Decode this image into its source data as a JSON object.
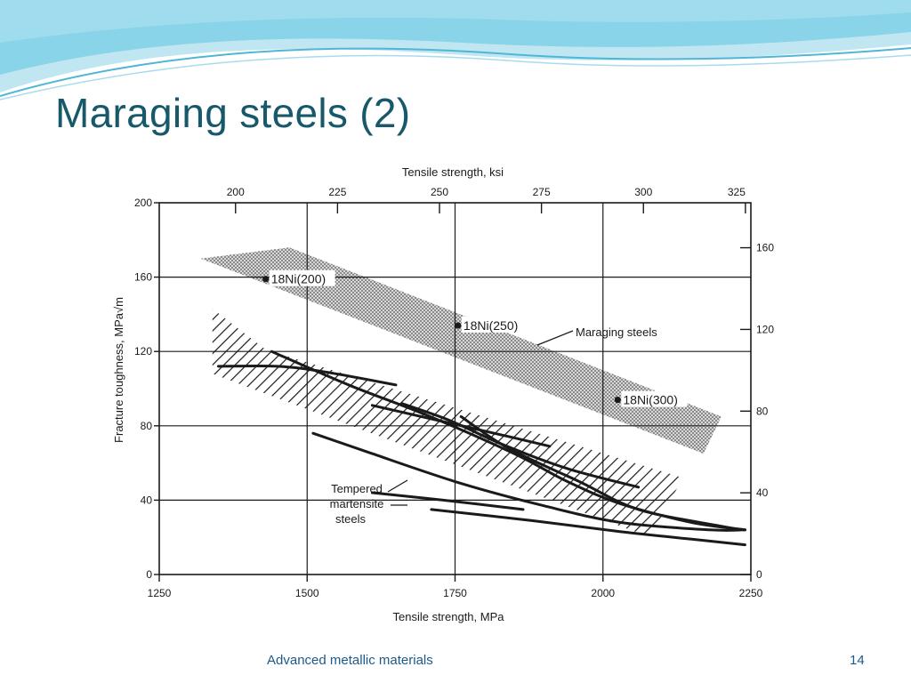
{
  "slide": {
    "title": "Maraging steels (2)",
    "footer": "Advanced metallic materials",
    "page_number": "14",
    "colors": {
      "title": "#17586b",
      "footer": "#1b5a8c",
      "header_wave": "#7fd0e6"
    }
  },
  "chart_data": {
    "type": "line",
    "xlabel_bottom": "Tensile strength, MPa",
    "xlabel_top": "Tensile strength, ksi",
    "ylabel_left": "Fracture toughness, MPa√m",
    "xlim": [
      1250,
      2250
    ],
    "ylim": [
      0,
      200
    ],
    "x_ticks": [
      "1250",
      "1500",
      "1750",
      "2000",
      "2250"
    ],
    "y_ticks_left": [
      "0",
      "40",
      "80",
      "120",
      "160",
      "200"
    ],
    "x_ticks_top": [
      "200",
      "225",
      "250",
      "275",
      "300",
      "325"
    ],
    "y_ticks_right": [
      "0",
      "40",
      "80",
      "120",
      "160"
    ],
    "grid": true,
    "regions": [
      {
        "label": "Maraging steels",
        "pattern": "stipple",
        "polygon": [
          [
            1320,
            170
          ],
          [
            1470,
            176
          ],
          [
            2200,
            85
          ],
          [
            2170,
            65
          ]
        ]
      },
      {
        "label": "Tempered martensite steels",
        "pattern": "hatched",
        "polygon": [
          [
            1340,
            143
          ],
          [
            1430,
            121
          ],
          [
            2135,
            52
          ],
          [
            2080,
            20
          ],
          [
            1340,
            108
          ]
        ]
      }
    ],
    "points": [
      {
        "label": "18Ni(200)",
        "x": 1430,
        "y": 159
      },
      {
        "label": "18Ni(250)",
        "x": 1755,
        "y": 134
      },
      {
        "label": "18Ni(300)",
        "x": 2025,
        "y": 94
      }
    ],
    "series": [
      {
        "values": [
          [
            1350,
            112
          ],
          [
            1450,
            112
          ],
          [
            1530,
            109
          ],
          [
            1650,
            102
          ]
        ]
      },
      {
        "values": [
          [
            1440,
            120
          ],
          [
            1570,
            102
          ],
          [
            1700,
            86
          ],
          [
            1850,
            65
          ],
          [
            1940,
            50
          ],
          [
            2030,
            38
          ],
          [
            2150,
            28
          ],
          [
            2240,
            24
          ]
        ]
      },
      {
        "values": [
          [
            1610,
            91
          ],
          [
            1720,
            83
          ],
          [
            1830,
            75
          ],
          [
            1910,
            69
          ]
        ]
      },
      {
        "values": [
          [
            1660,
            92
          ],
          [
            1740,
            83
          ],
          [
            1830,
            70
          ],
          [
            1940,
            57
          ],
          [
            2060,
            47
          ]
        ]
      },
      {
        "values": [
          [
            1760,
            85
          ],
          [
            1840,
            68
          ],
          [
            1960,
            50
          ],
          [
            2060,
            35
          ],
          [
            2200,
            26
          ],
          [
            2240,
            24
          ]
        ]
      },
      {
        "values": [
          [
            1510,
            76
          ],
          [
            1610,
            65
          ],
          [
            1760,
            49
          ],
          [
            1900,
            37
          ],
          [
            2030,
            28
          ],
          [
            2180,
            24
          ],
          [
            2240,
            24
          ]
        ]
      },
      {
        "values": [
          [
            1710,
            35
          ],
          [
            1880,
            29
          ],
          [
            2030,
            23
          ],
          [
            2150,
            19
          ],
          [
            2240,
            16
          ]
        ]
      },
      {
        "values": [
          [
            1610,
            44
          ],
          [
            1730,
            40
          ],
          [
            1865,
            35
          ]
        ]
      }
    ]
  }
}
